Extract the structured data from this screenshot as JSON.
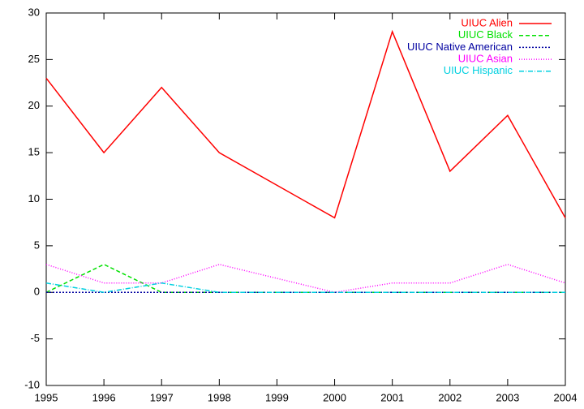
{
  "chart_data": {
    "type": "line",
    "x": [
      1995,
      1996,
      1997,
      1998,
      2000,
      2001,
      2002,
      2003,
      2004
    ],
    "series": [
      {
        "name": "UIUC Alien",
        "color": "#ff0000",
        "values": [
          23,
          15,
          22,
          15,
          8,
          28,
          13,
          19,
          8
        ]
      },
      {
        "name": "UIUC Black",
        "color": "#00e000",
        "values": [
          0,
          3,
          0,
          0,
          0,
          0,
          0,
          0,
          0
        ]
      },
      {
        "name": "UIUC Native American",
        "color": "#0000a0",
        "values": [
          0,
          0,
          0,
          0,
          0,
          0,
          0,
          0,
          0
        ]
      },
      {
        "name": "UIUC Asian",
        "color": "#ff00ff",
        "values": [
          3,
          1,
          1,
          3,
          0,
          1,
          1,
          3,
          1
        ]
      },
      {
        "name": "UIUC Hispanic",
        "color": "#00d0e0",
        "values": [
          1,
          0,
          1,
          0,
          0,
          0,
          0,
          0,
          0
        ]
      }
    ],
    "xlim": [
      1995,
      2004
    ],
    "xticks": [
      1995,
      1996,
      1997,
      1998,
      1999,
      2000,
      2001,
      2002,
      2003,
      2004
    ],
    "ylim": [
      -10,
      30
    ],
    "yticks": [
      -10,
      -5,
      0,
      5,
      10,
      15,
      20,
      25,
      30
    ],
    "legend": "top-right"
  }
}
